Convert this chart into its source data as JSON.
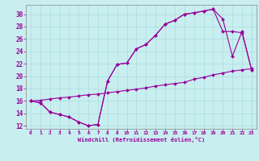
{
  "xlabel": "Windchill (Refroidissement éolien,°C)",
  "bg_color": "#c8eef0",
  "grid_color": "#aadddd",
  "line_color": "#990099",
  "xlim": [
    -0.5,
    23.5
  ],
  "ylim": [
    11.5,
    31.5
  ],
  "xticks": [
    0,
    1,
    2,
    3,
    4,
    5,
    6,
    7,
    8,
    9,
    10,
    11,
    12,
    13,
    14,
    15,
    16,
    17,
    18,
    19,
    20,
    21,
    22,
    23
  ],
  "yticks": [
    12,
    14,
    16,
    18,
    20,
    22,
    24,
    26,
    28,
    30
  ],
  "curve_upper_x": [
    0,
    1,
    2,
    3,
    4,
    5,
    6,
    7,
    8,
    9,
    10,
    11,
    12,
    13,
    14,
    15,
    16,
    17,
    18,
    19,
    20,
    21,
    22,
    23
  ],
  "curve_upper_y": [
    16.0,
    15.7,
    14.2,
    13.8,
    13.4,
    12.6,
    12.0,
    12.2,
    19.2,
    21.9,
    22.1,
    24.4,
    25.1,
    26.6,
    28.4,
    29.0,
    30.0,
    30.2,
    30.5,
    30.8,
    29.2,
    23.2,
    27.2,
    21.0
  ],
  "curve_lower_x": [
    0,
    1,
    2,
    3,
    4,
    5,
    6,
    7,
    8,
    9,
    10,
    11,
    12,
    13,
    14,
    15,
    16,
    17,
    18,
    19,
    20,
    21,
    22,
    23
  ],
  "curve_lower_y": [
    16.0,
    15.7,
    14.2,
    13.8,
    13.4,
    12.6,
    12.0,
    12.2,
    19.2,
    21.9,
    22.1,
    24.4,
    25.1,
    26.6,
    28.4,
    29.0,
    30.0,
    30.2,
    30.5,
    30.8,
    27.2,
    27.2,
    27.0,
    21.0
  ],
  "curve_diag_x": [
    0,
    1,
    2,
    3,
    4,
    5,
    6,
    7,
    8,
    9,
    10,
    11,
    12,
    13,
    14,
    15,
    16,
    17,
    18,
    19,
    20,
    21,
    22,
    23
  ],
  "curve_diag_y": [
    16.0,
    16.1,
    16.3,
    16.5,
    16.6,
    16.8,
    17.0,
    17.1,
    17.3,
    17.5,
    17.7,
    17.9,
    18.1,
    18.4,
    18.6,
    18.8,
    19.0,
    19.5,
    19.8,
    20.2,
    20.5,
    20.8,
    21.0,
    21.2
  ]
}
